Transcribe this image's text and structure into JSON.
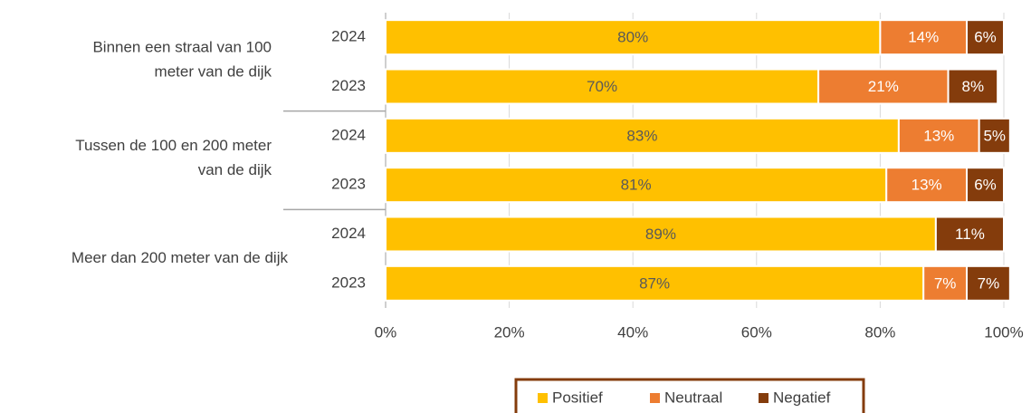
{
  "chart_data": {
    "type": "stacked-bar-horizontal",
    "groups": [
      {
        "label": [
          "Binnen een straal van 100",
          "meter van de dijk"
        ],
        "start": 0,
        "count": 2
      },
      {
        "label": [
          "Tussen de 100 en 200 meter",
          "van de dijk"
        ],
        "start": 2,
        "count": 2
      },
      {
        "label": [
          "Meer dan 200 meter van de dijk"
        ],
        "start": 4,
        "count": 2
      }
    ],
    "categories": [
      "2024",
      "2023",
      "2024",
      "2023",
      "2024",
      "2023"
    ],
    "series": [
      {
        "name": "Positief",
        "color": "#FFC000",
        "label_color": "#595959",
        "values": [
          80,
          70,
          83,
          81,
          89,
          87
        ],
        "value_labels": [
          "80%",
          "70%",
          "83%",
          "81%",
          "89%",
          "87%"
        ]
      },
      {
        "name": "Neutraal",
        "color": "#ED7D31",
        "label_color": "#ffffff",
        "values": [
          14,
          21,
          13,
          13,
          null,
          7
        ],
        "value_labels": [
          "14%",
          "21%",
          "13%",
          "13%",
          null,
          "7%"
        ]
      },
      {
        "name": "Negatief",
        "color": "#843C0C",
        "label_color": "#ffffff",
        "values": [
          6,
          8,
          5,
          6,
          11,
          7
        ],
        "value_labels": [
          "6%",
          "8%",
          "5%",
          "6%",
          "11%",
          "7%"
        ]
      }
    ],
    "xlim": [
      0,
      100
    ],
    "xticks": [
      {
        "value": 0,
        "label": "0%"
      },
      {
        "value": 20,
        "label": "20%"
      },
      {
        "value": 40,
        "label": "40%"
      },
      {
        "value": 60,
        "label": "60%"
      },
      {
        "value": 80,
        "label": "80%"
      },
      {
        "value": 100,
        "label": "100%"
      }
    ],
    "grid": true,
    "legend": "bottom"
  }
}
